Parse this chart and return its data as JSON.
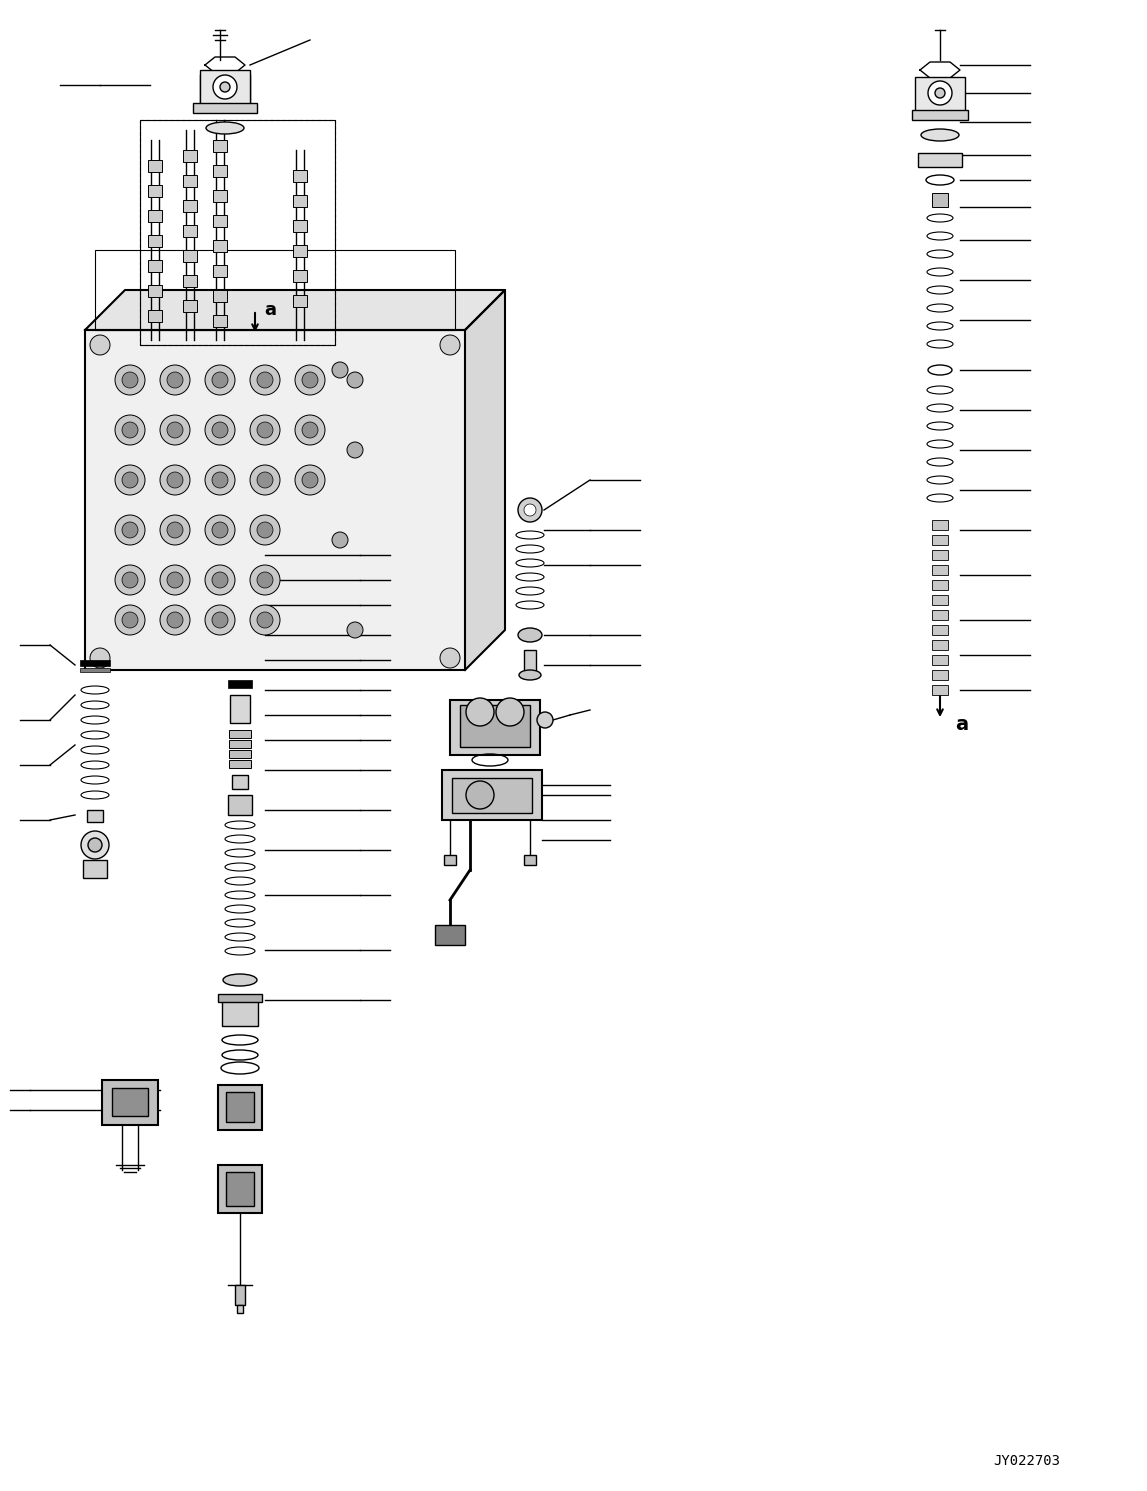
{
  "figsize": [
    11.47,
    14.91
  ],
  "dpi": 100,
  "bg_color": "#ffffff",
  "watermark": "JY022703",
  "label_a_left": "a",
  "label_a_right": "a"
}
